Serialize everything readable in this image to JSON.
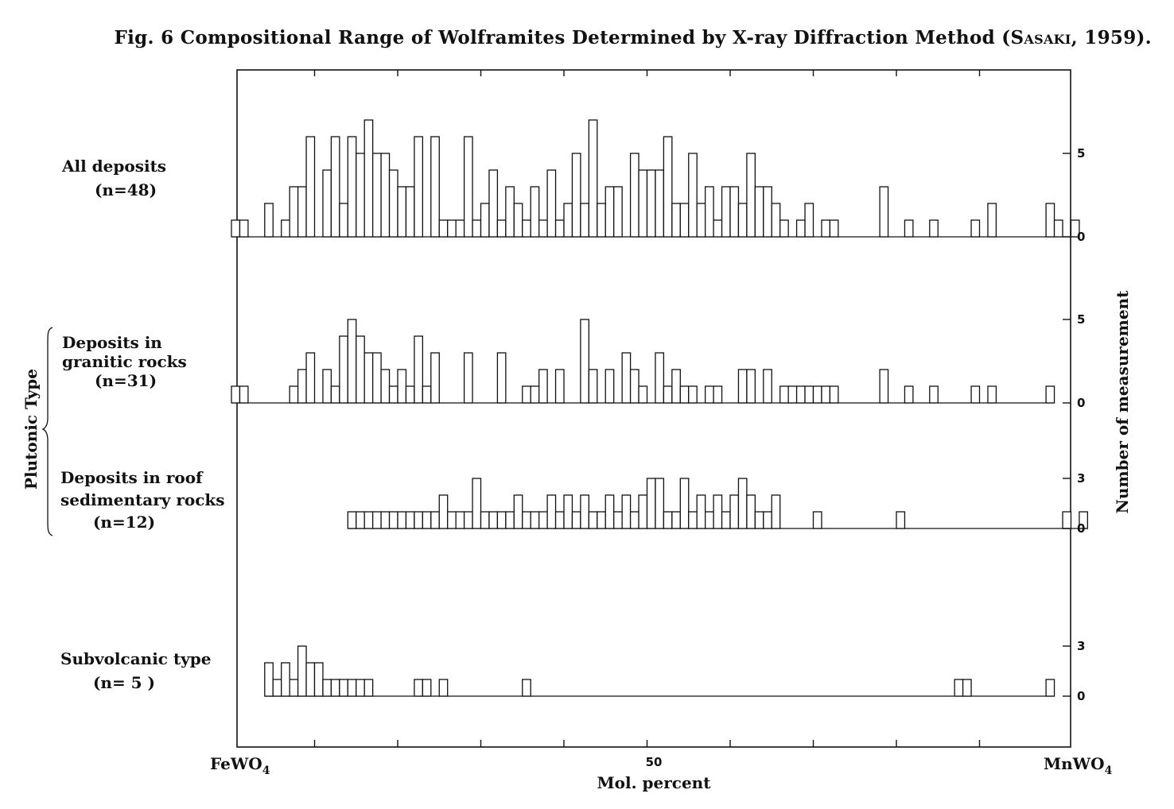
{
  "figure": {
    "title_prefix": "Fig. 6 Compositional Range of Wolframites Determined by X-ray Diffraction Method (",
    "title_author": "Sasaki",
    "title_suffix": ", 1959)."
  },
  "chart_data": {
    "type": "bar",
    "title": "Fig. 6 Compositional Range of Wolframites Determined by X-ray Diffraction Method (Sasaki, 1959).",
    "xlabel": "Mol. percent",
    "ylabel": "Number of measurement",
    "x_left_label": "FeWO",
    "x_right_label": "MnWO",
    "x_label_subscript": "4",
    "x_tick_label": "50",
    "xlim": [
      0,
      100
    ],
    "bin_width": 1,
    "group_label": "Plutonic Type",
    "panels": [
      {
        "name": "All deposits",
        "label_lines": [
          "All deposits",
          "(n=48)"
        ],
        "y_ticks": [
          0,
          5
        ],
        "values": [
          1,
          1,
          0,
          0,
          2,
          0,
          1,
          3,
          3,
          6,
          0,
          4,
          6,
          2,
          6,
          5,
          7,
          5,
          5,
          4,
          3,
          3,
          6,
          0,
          6,
          1,
          1,
          1,
          6,
          1,
          2,
          4,
          1,
          3,
          2,
          1,
          3,
          1,
          4,
          1,
          2,
          5,
          2,
          7,
          2,
          3,
          3,
          0,
          5,
          4,
          4,
          4,
          6,
          2,
          2,
          5,
          2,
          3,
          1,
          3,
          3,
          2,
          5,
          3,
          3,
          2,
          1,
          0,
          1,
          2,
          0,
          1,
          1,
          0,
          0,
          0,
          0,
          0,
          3,
          0,
          0,
          1,
          0,
          0,
          1,
          0,
          0,
          0,
          0,
          1,
          0,
          2,
          0,
          0,
          0,
          0,
          0,
          0,
          2,
          1,
          0,
          1
        ]
      },
      {
        "name": "Deposits in granitic rocks",
        "label_lines": [
          "Deposits in",
          "granitic rocks",
          "(n=31)"
        ],
        "y_ticks": [
          0,
          5
        ],
        "values": [
          1,
          1,
          0,
          0,
          0,
          0,
          0,
          1,
          2,
          3,
          0,
          2,
          1,
          4,
          5,
          4,
          3,
          3,
          2,
          1,
          2,
          1,
          4,
          1,
          3,
          0,
          0,
          0,
          3,
          0,
          0,
          0,
          3,
          0,
          0,
          1,
          1,
          2,
          0,
          2,
          0,
          0,
          5,
          2,
          0,
          2,
          0,
          3,
          2,
          1,
          0,
          3,
          1,
          2,
          1,
          1,
          0,
          1,
          1,
          0,
          0,
          2,
          2,
          0,
          2,
          0,
          1,
          1,
          1,
          1,
          1,
          1,
          1,
          0,
          0,
          0,
          0,
          0,
          2,
          0,
          0,
          1,
          0,
          0,
          1,
          0,
          0,
          0,
          0,
          1,
          0,
          1,
          0,
          0,
          0,
          0,
          0,
          0,
          1,
          0,
          0,
          0
        ]
      },
      {
        "name": "Deposits in roof sedimentary rocks",
        "label_lines": [
          "Deposits in roof",
          "sedimentary rocks",
          "(n=12)"
        ],
        "y_ticks": [
          0,
          3
        ],
        "values": [
          0,
          0,
          0,
          0,
          0,
          0,
          0,
          0,
          0,
          0,
          0,
          0,
          0,
          0,
          1,
          1,
          1,
          1,
          1,
          1,
          1,
          1,
          1,
          1,
          1,
          2,
          1,
          1,
          1,
          3,
          1,
          1,
          1,
          1,
          2,
          1,
          1,
          1,
          2,
          1,
          2,
          1,
          2,
          1,
          1,
          2,
          1,
          2,
          1,
          2,
          3,
          3,
          1,
          1,
          3,
          1,
          2,
          1,
          2,
          1,
          2,
          3,
          2,
          1,
          1,
          2,
          0,
          0,
          0,
          0,
          1,
          0,
          0,
          0,
          0,
          0,
          0,
          0,
          0,
          0,
          1,
          0,
          0,
          0,
          0,
          0,
          0,
          0,
          0,
          0,
          0,
          0,
          0,
          0,
          0,
          0,
          0,
          0,
          0,
          0,
          1,
          0,
          1
        ]
      },
      {
        "name": "Subvolcanic type",
        "label_lines": [
          "Subvolcanic type",
          "(n= 5 )"
        ],
        "y_ticks": [
          0,
          3
        ],
        "values": [
          0,
          0,
          0,
          0,
          2,
          1,
          2,
          1,
          3,
          2,
          2,
          1,
          1,
          1,
          1,
          1,
          1,
          0,
          0,
          0,
          0,
          0,
          1,
          1,
          0,
          1,
          0,
          0,
          0,
          0,
          0,
          0,
          0,
          0,
          0,
          1,
          0,
          0,
          0,
          0,
          0,
          0,
          0,
          0,
          0,
          0,
          0,
          0,
          0,
          0,
          0,
          0,
          0,
          0,
          0,
          0,
          0,
          0,
          0,
          0,
          0,
          0,
          0,
          0,
          0,
          0,
          0,
          0,
          0,
          0,
          0,
          0,
          0,
          0,
          0,
          0,
          0,
          0,
          0,
          0,
          0,
          0,
          0,
          0,
          0,
          0,
          0,
          1,
          1,
          0,
          0,
          0,
          0,
          0,
          0,
          0,
          0,
          0,
          1,
          0,
          0,
          0
        ]
      }
    ]
  }
}
